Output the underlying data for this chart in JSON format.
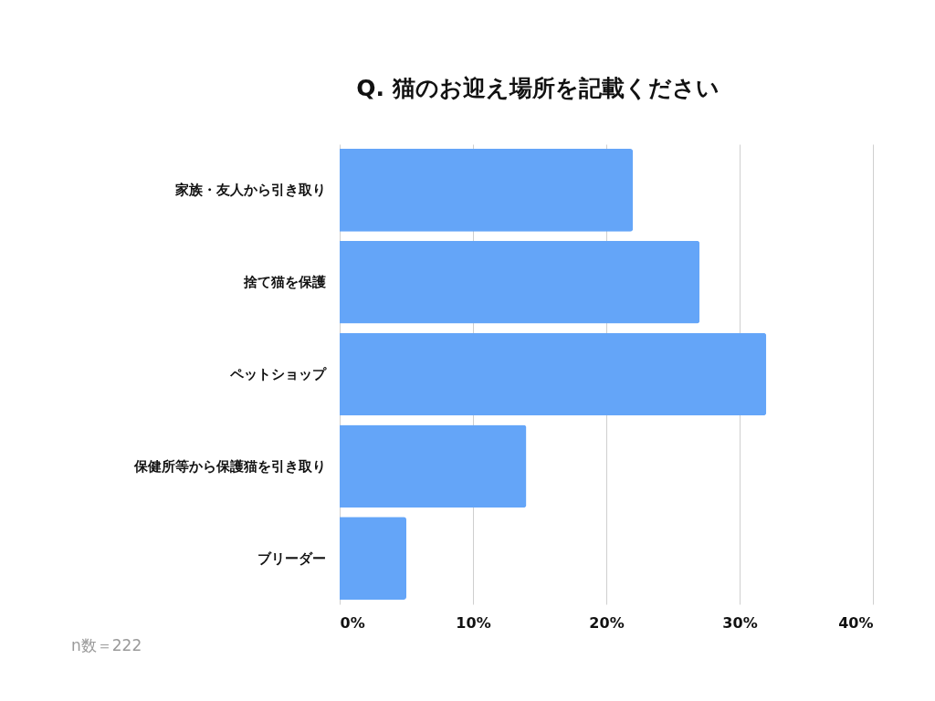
{
  "chart_data": {
    "type": "bar",
    "orientation": "horizontal",
    "title": "Q. 猫のお迎え場所を記載ください",
    "categories": [
      "家族・友人から引き取り",
      "捨て猫を保護",
      "ペットショップ",
      "保健所等から保護猫を引き取り",
      "ブリーダー"
    ],
    "values": [
      22,
      27,
      32,
      14,
      5
    ],
    "color": "#64a5f8",
    "xlim": [
      0,
      40
    ],
    "xticks": [
      {
        "value": 0,
        "label": "0%"
      },
      {
        "value": 10,
        "label": "10%"
      },
      {
        "value": 20,
        "label": "20%"
      },
      {
        "value": 30,
        "label": "30%"
      },
      {
        "value": 40,
        "label": "40%"
      }
    ],
    "grid": "x",
    "annotations": [
      "n数＝222"
    ]
  }
}
